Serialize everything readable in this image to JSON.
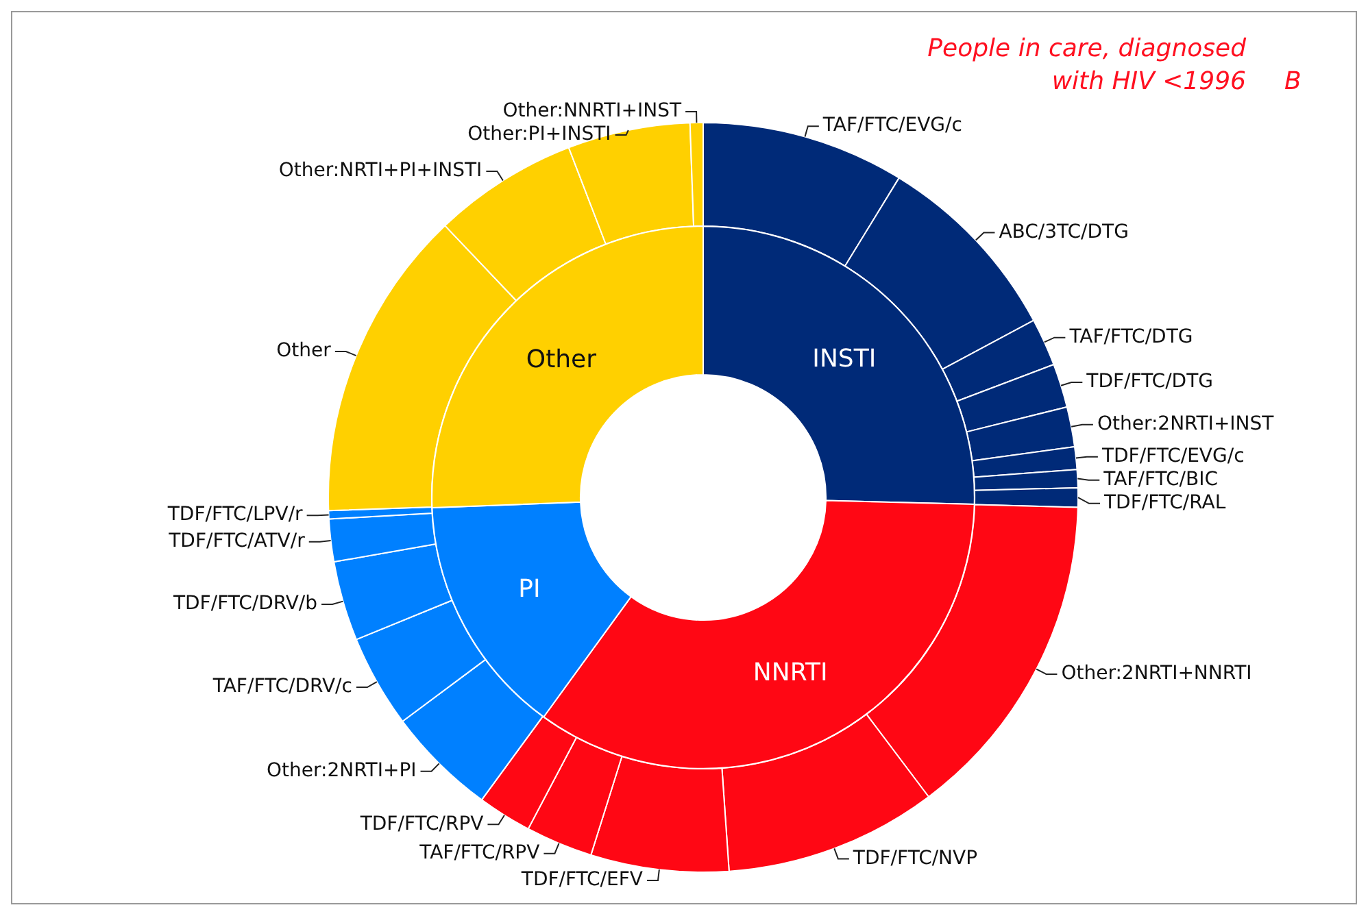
{
  "chart_data": [
    {
      "type": "donut",
      "title": "People in care, diagnosed with HIV <1996",
      "annotations": [
        "B"
      ],
      "legend": false,
      "categories": [
        "INSTI",
        "NNRTI",
        "PI",
        "Other"
      ],
      "values": [
        25.4,
        34.6,
        14.4,
        25.6
      ],
      "colors": [
        "#002a78",
        "#ff0714",
        "#0080ff",
        "#ffd000"
      ]
    },
    {
      "type": "donut",
      "legend": false,
      "categories": [
        "TAF/FTC/EVG/c",
        "ABC/3TC/DTG",
        "TAF/FTC/DTG",
        "TDF/FTC/DTG",
        "Other:2NRTI+INST",
        "TDF/FTC/EVG/c",
        "TAF/FTC/BIC",
        "TDF/FTC/RAL",
        "Other:2NRTI+NNRTI",
        "TDF/FTC/NVP",
        "TDF/FTC/EFV",
        "TAF/FTC/RPV",
        "TDF/FTC/RPV",
        "Other:2NRTI+PI",
        "TAF/FTC/DRV/c",
        "TDF/FTC/DRV/b",
        "TDF/FTC/ATV/r",
        "TDF/FTC/LPV/r",
        "Other",
        "Other:NRTI+PI+INSTI",
        "Other:PI+INSTI",
        "Other:NNRTI+INST"
      ],
      "values": [
        8.75,
        8.42,
        2.06,
        1.89,
        1.72,
        0.97,
        0.78,
        0.83,
        14.31,
        9.17,
        5.94,
        2.89,
        2.33,
        4.75,
        4.0,
        3.44,
        1.83,
        0.36,
        13.47,
        6.25,
        5.28,
        0.56
      ],
      "colors": [
        "#002a78",
        "#002a78",
        "#002a78",
        "#002a78",
        "#002a78",
        "#002a78",
        "#002a78",
        "#002a78",
        "#ff0714",
        "#ff0714",
        "#ff0714",
        "#ff0714",
        "#ff0714",
        "#0080ff",
        "#0080ff",
        "#0080ff",
        "#0080ff",
        "#0080ff",
        "#ffd000",
        "#ffd000",
        "#ffd000",
        "#ffd000"
      ]
    }
  ]
}
